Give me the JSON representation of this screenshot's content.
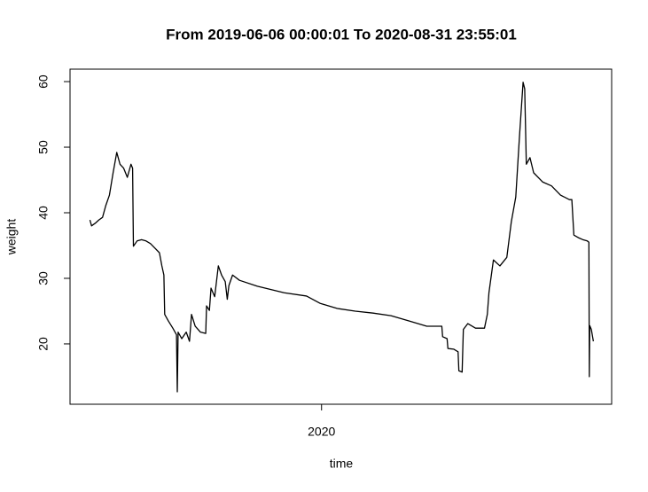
{
  "chart_data": {
    "type": "line",
    "title": "From 2019-06-06 00:00:01 To 2020-08-31 23:55:01",
    "x_label": "time",
    "y_label": "weight",
    "color": "#000000",
    "x": [
      2019.43,
      2019.434,
      2019.443,
      2019.452,
      2019.461,
      2019.469,
      2019.478,
      2019.487,
      2019.496,
      2019.504,
      2019.513,
      2019.522,
      2019.531,
      2019.535,
      2019.537,
      2019.546,
      2019.557,
      2019.568,
      2019.579,
      2019.59,
      2019.601,
      2019.607,
      2019.612,
      2019.614,
      2019.623,
      2019.634,
      2019.643,
      2019.645,
      2019.647,
      2019.656,
      2019.667,
      2019.675,
      2019.68,
      2019.689,
      2019.702,
      2019.715,
      2019.717,
      2019.724,
      2019.728,
      2019.737,
      2019.746,
      2019.754,
      2019.763,
      2019.768,
      2019.772,
      2019.781,
      2019.798,
      2019.842,
      2019.908,
      2019.963,
      2019.996,
      2020.039,
      2020.083,
      2020.127,
      2020.171,
      2020.215,
      2020.259,
      2020.296,
      2020.298,
      2020.309,
      2020.311,
      2020.325,
      2020.336,
      2020.338,
      2020.346,
      2020.349,
      2020.36,
      2020.379,
      2020.401,
      2020.408,
      2020.412,
      2020.423,
      2020.439,
      2020.456,
      2020.467,
      2020.478,
      2020.487,
      2020.496,
      2020.5,
      2020.504,
      2020.513,
      2020.522,
      2020.544,
      2020.566,
      2020.588,
      2020.61,
      2020.616,
      2020.621,
      2020.632,
      2020.643,
      2020.654,
      2020.658,
      2020.659,
      2020.66,
      2020.664,
      2020.669
    ],
    "values": [
      38.9,
      38.0,
      38.4,
      38.9,
      39.3,
      41.1,
      42.7,
      46.1,
      49.2,
      47.4,
      46.8,
      45.4,
      47.4,
      46.8,
      34.9,
      35.7,
      35.9,
      35.7,
      35.3,
      34.6,
      33.9,
      31.9,
      30.5,
      24.5,
      23.5,
      22.4,
      21.4,
      12.7,
      21.8,
      20.8,
      21.8,
      20.4,
      24.5,
      22.7,
      21.8,
      21.6,
      25.8,
      25.1,
      28.5,
      27.2,
      31.9,
      30.5,
      29.5,
      26.8,
      28.9,
      30.5,
      29.7,
      28.8,
      27.8,
      27.3,
      26.2,
      25.4,
      25.0,
      24.7,
      24.3,
      23.5,
      22.7,
      22.7,
      21.1,
      20.8,
      19.3,
      19.2,
      18.8,
      15.9,
      15.7,
      22.2,
      23.1,
      22.4,
      22.4,
      24.5,
      27.8,
      32.8,
      31.9,
      33.2,
      38.6,
      42.4,
      51.5,
      59.9,
      58.9,
      47.4,
      48.4,
      46.1,
      44.7,
      44.1,
      42.7,
      42.0,
      42.0,
      36.6,
      36.2,
      35.9,
      35.7,
      35.5,
      15.0,
      22.8,
      22.2,
      20.4
    ],
    "xlim": [
      2019.381,
      2020.714
    ],
    "xticks": [
      2020
    ],
    "ylim": [
      10.8,
      61.9
    ],
    "yticks": [
      20,
      30,
      40,
      50,
      60
    ]
  }
}
